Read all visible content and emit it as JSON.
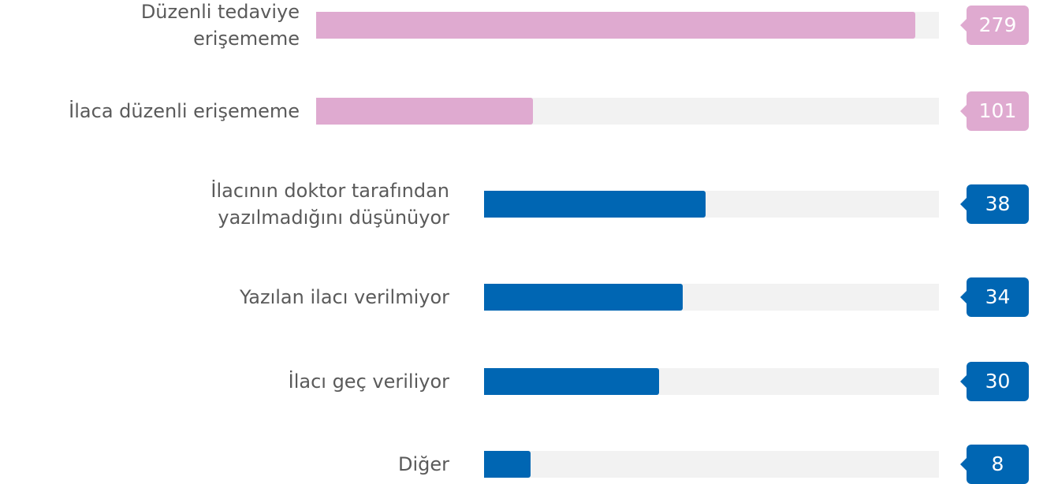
{
  "chart_data": [
    {
      "type": "bar",
      "orientation": "horizontal",
      "color": "#dfaad0",
      "categories": [
        "Düzenli tedaviye erişememe",
        "İlaca düzenli erişememe"
      ],
      "values": [
        279,
        101
      ],
      "xlim": [
        0,
        290
      ]
    },
    {
      "type": "bar",
      "orientation": "horizontal",
      "color": "#0066b3",
      "categories": [
        "İlacının doktor tarafından yazılmadığını düşünüyor",
        "Yazılan ilacı verilmiyor",
        "İlacı geç veriliyor",
        "Diğer"
      ],
      "values": [
        38,
        34,
        30,
        8
      ],
      "xlim": [
        0,
        78
      ]
    }
  ]
}
